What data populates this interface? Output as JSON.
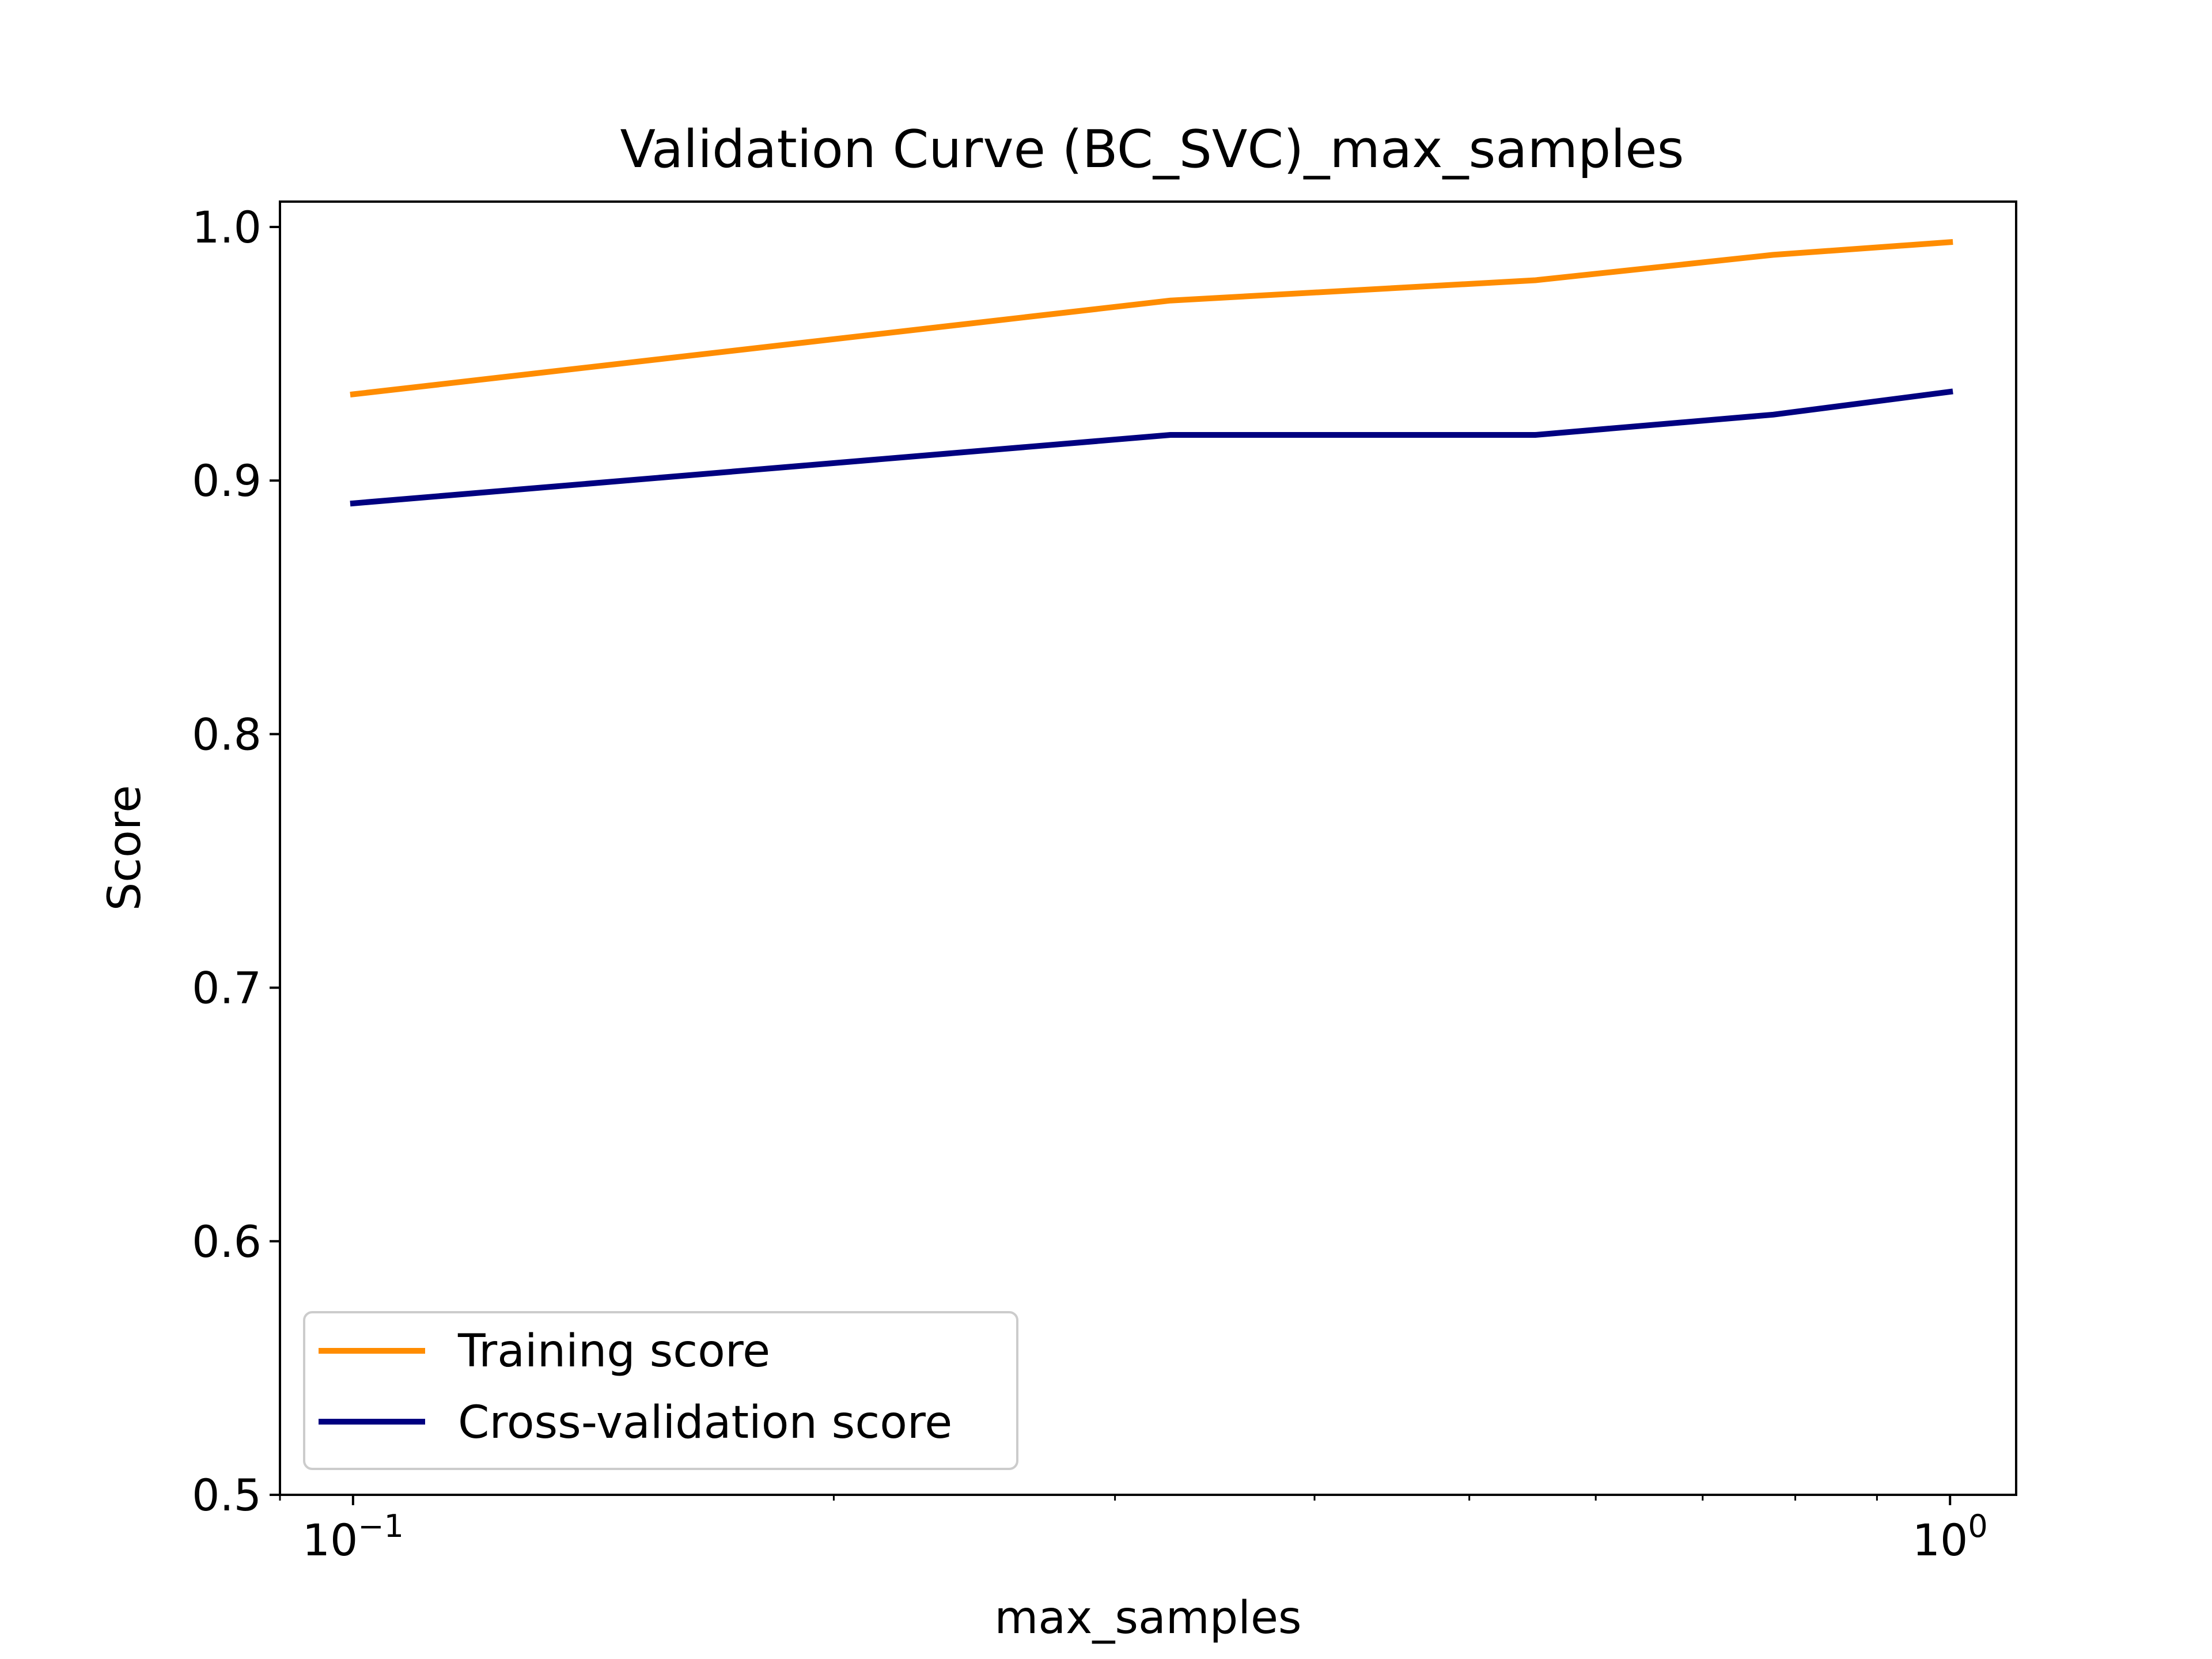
{
  "chart_data": {
    "type": "line",
    "title": "Validation Curve (BC_SVC)_max_samples",
    "xlabel": "max_samples",
    "ylabel": "Score",
    "xscale": "log",
    "xlim": [
      0.09,
      1.1
    ],
    "ylim": [
      0.5,
      1.01
    ],
    "grid": false,
    "x": [
      0.1,
      0.325,
      0.55,
      0.775,
      1.0
    ],
    "series": [
      {
        "name": "Training score",
        "color": "#ff8c00",
        "values": [
          0.934,
          0.971,
          0.979,
          0.989,
          0.994
        ]
      },
      {
        "name": "Cross-validation score",
        "color": "#000080",
        "values": [
          0.891,
          0.918,
          0.918,
          0.926,
          0.935
        ]
      }
    ],
    "y_ticks": [
      {
        "value": 0.5,
        "label": "0.5"
      },
      {
        "value": 0.6,
        "label": "0.6"
      },
      {
        "value": 0.7,
        "label": "0.7"
      },
      {
        "value": 0.8,
        "label": "0.8"
      },
      {
        "value": 0.9,
        "label": "0.9"
      },
      {
        "value": 1.0,
        "label": "1.0"
      }
    ],
    "x_major_ticks": [
      {
        "value": 0.1,
        "base": "10",
        "exp": "−1"
      },
      {
        "value": 1.0,
        "base": "10",
        "exp": "0"
      }
    ],
    "x_minor_ticks": [
      0.09,
      0.2,
      0.3,
      0.4,
      0.5,
      0.6,
      0.7,
      0.8,
      0.9
    ],
    "legend_position": "lower-left"
  }
}
